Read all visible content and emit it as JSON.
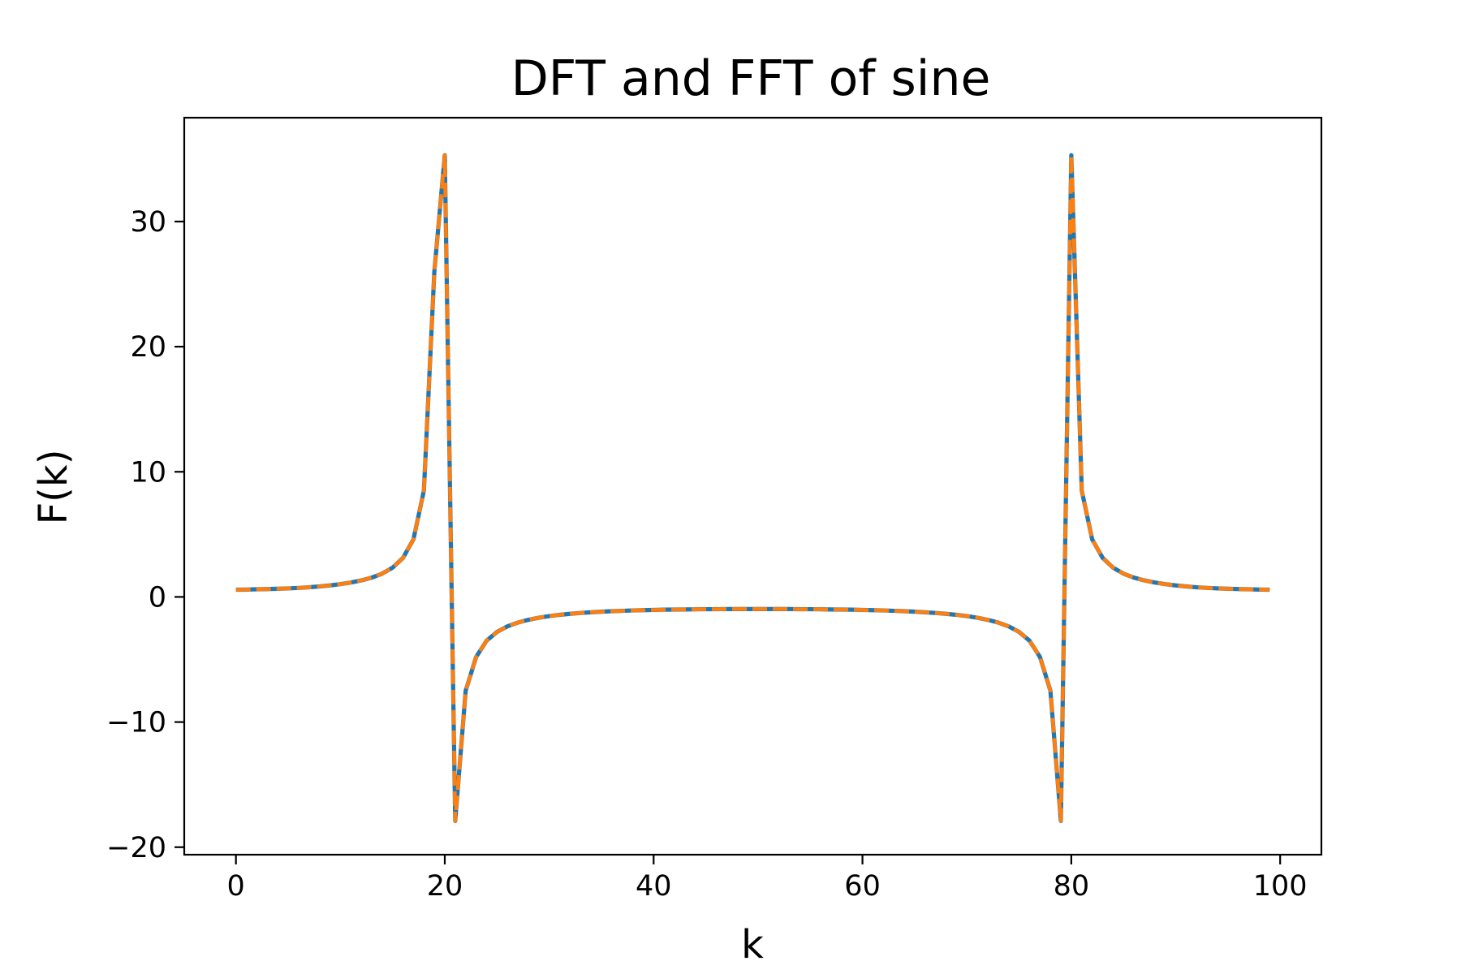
{
  "chart_data": {
    "type": "line",
    "title": "DFT and FFT of sine",
    "xlabel": "k",
    "ylabel": "F(k)",
    "xlim": [
      -4.95,
      103.95
    ],
    "ylim": [
      -20.6,
      38.3
    ],
    "xticks": [
      0,
      20,
      40,
      60,
      80,
      100
    ],
    "yticks": [
      -20,
      -10,
      0,
      10,
      20,
      30
    ],
    "xtick_labels": [
      "0",
      "20",
      "40",
      "60",
      "80",
      "100"
    ],
    "ytick_labels": [
      "−20",
      "−10",
      "0",
      "10",
      "20",
      "30"
    ],
    "grid": false,
    "legend": "none",
    "x": [
      0,
      1,
      2,
      3,
      4,
      5,
      6,
      7,
      8,
      9,
      10,
      11,
      12,
      13,
      14,
      15,
      16,
      17,
      18,
      19,
      20,
      21,
      22,
      23,
      24,
      25,
      26,
      27,
      28,
      29,
      30,
      31,
      32,
      33,
      34,
      35,
      36,
      37,
      38,
      39,
      40,
      41,
      42,
      43,
      44,
      45,
      46,
      47,
      48,
      49,
      50,
      51,
      52,
      53,
      54,
      55,
      56,
      57,
      58,
      59,
      60,
      61,
      62,
      63,
      64,
      65,
      66,
      67,
      68,
      69,
      70,
      71,
      72,
      73,
      74,
      75,
      76,
      77,
      78,
      79,
      80,
      81,
      82,
      83,
      84,
      85,
      86,
      87,
      88,
      89,
      90,
      91,
      92,
      93,
      94,
      95,
      96,
      97,
      98,
      99
    ],
    "series": [
      {
        "color": "#1f77b4",
        "linestyle": "solid",
        "values": [
          0.58,
          0.59,
          0.61,
          0.63,
          0.65,
          0.68,
          0.72,
          0.77,
          0.84,
          0.92,
          1.02,
          1.15,
          1.32,
          1.54,
          1.86,
          2.34,
          3.12,
          4.6,
          8.5,
          26.0,
          35.3,
          -17.9,
          -7.5,
          -4.8,
          -3.5,
          -2.8,
          -2.35,
          -2.05,
          -1.83,
          -1.66,
          -1.53,
          -1.43,
          -1.35,
          -1.28,
          -1.23,
          -1.18,
          -1.14,
          -1.11,
          -1.08,
          -1.06,
          -1.04,
          -1.02,
          -1.01,
          -1.0,
          -0.99,
          -0.98,
          -0.98,
          -0.97,
          -0.97,
          -0.97,
          -0.97,
          -0.97,
          -0.97,
          -0.97,
          -0.98,
          -0.98,
          -0.99,
          -1.0,
          -1.01,
          -1.02,
          -1.04,
          -1.06,
          -1.08,
          -1.11,
          -1.14,
          -1.18,
          -1.23,
          -1.28,
          -1.35,
          -1.43,
          -1.53,
          -1.66,
          -1.83,
          -2.05,
          -2.35,
          -2.8,
          -3.5,
          -4.8,
          -7.5,
          -17.9,
          35.3,
          8.5,
          4.6,
          3.12,
          2.34,
          1.86,
          1.54,
          1.32,
          1.15,
          1.02,
          0.92,
          0.84,
          0.77,
          0.72,
          0.68,
          0.65,
          0.63,
          0.61,
          0.59,
          0.58
        ]
      },
      {
        "color": "#ff7f0e",
        "linestyle": "dashed",
        "values": [
          0.58,
          0.59,
          0.61,
          0.63,
          0.65,
          0.68,
          0.72,
          0.77,
          0.84,
          0.92,
          1.02,
          1.15,
          1.32,
          1.54,
          1.86,
          2.34,
          3.12,
          4.6,
          8.5,
          26.0,
          35.3,
          -17.9,
          -7.5,
          -4.8,
          -3.5,
          -2.8,
          -2.35,
          -2.05,
          -1.83,
          -1.66,
          -1.53,
          -1.43,
          -1.35,
          -1.28,
          -1.23,
          -1.18,
          -1.14,
          -1.11,
          -1.08,
          -1.06,
          -1.04,
          -1.02,
          -1.01,
          -1.0,
          -0.99,
          -0.98,
          -0.98,
          -0.97,
          -0.97,
          -0.97,
          -0.97,
          -0.97,
          -0.97,
          -0.97,
          -0.98,
          -0.98,
          -0.99,
          -1.0,
          -1.01,
          -1.02,
          -1.04,
          -1.06,
          -1.08,
          -1.11,
          -1.14,
          -1.18,
          -1.23,
          -1.28,
          -1.35,
          -1.43,
          -1.53,
          -1.66,
          -1.83,
          -2.05,
          -2.35,
          -2.8,
          -3.5,
          -4.8,
          -7.5,
          -17.9,
          35.3,
          8.5,
          4.6,
          3.12,
          2.34,
          1.86,
          1.54,
          1.32,
          1.15,
          1.02,
          0.92,
          0.84,
          0.77,
          0.72,
          0.68,
          0.65,
          0.63,
          0.61,
          0.59,
          0.58
        ]
      }
    ]
  }
}
